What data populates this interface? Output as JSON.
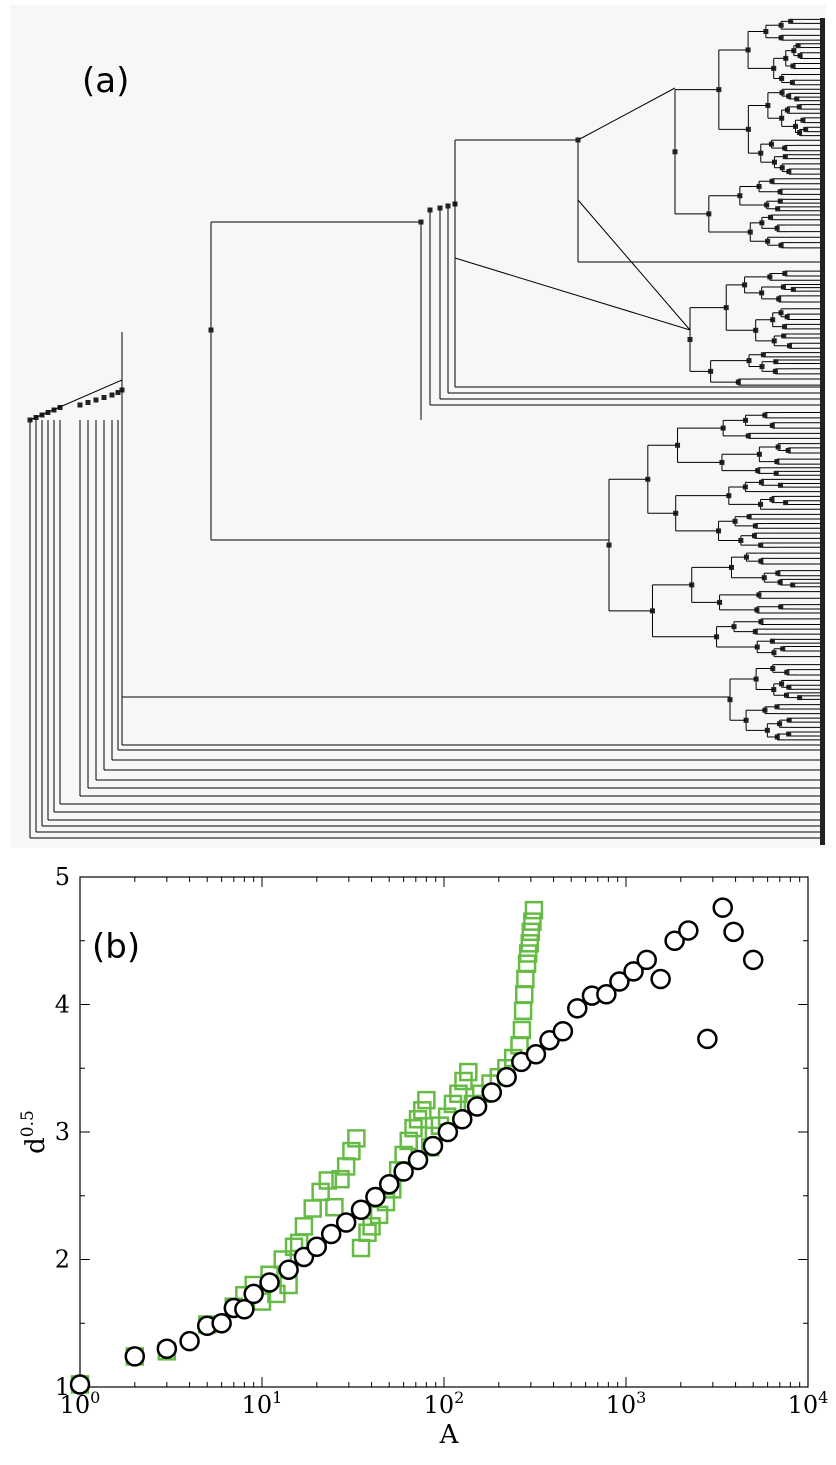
{
  "panel_a": {
    "label": "(a)",
    "background": "#f7f7f5",
    "line_color": "#000000",
    "node_color": "#222222"
  },
  "panel_b": {
    "label": "(b)"
  },
  "chart_data": [
    {
      "type": "tree",
      "panel": "(a)",
      "description_visible": "dendrogram",
      "title": "",
      "xlabel": "",
      "ylabel": ""
    },
    {
      "type": "scatter",
      "panel": "(b)",
      "title": "",
      "xlabel": "A",
      "ylabel": "d^0.5",
      "xscale": "log",
      "xlim": [
        1,
        10000
      ],
      "ylim": [
        1,
        5
      ],
      "x_ticks": [
        {
          "base": "10",
          "exp": "0"
        },
        {
          "base": "10",
          "exp": "1"
        },
        {
          "base": "10",
          "exp": "2"
        },
        {
          "base": "10",
          "exp": "3"
        },
        {
          "base": "10",
          "exp": "4"
        }
      ],
      "y_ticks": [
        "1",
        "2",
        "3",
        "4",
        "5"
      ],
      "series": [
        {
          "marker": "circle",
          "color": "#000000",
          "points": [
            [
              1,
              1.02
            ],
            [
              2,
              1.24
            ],
            [
              3,
              1.3
            ],
            [
              4,
              1.36
            ],
            [
              5,
              1.48
            ],
            [
              6,
              1.5
            ],
            [
              7,
              1.62
            ],
            [
              8,
              1.61
            ],
            [
              9,
              1.73
            ],
            [
              11,
              1.82
            ],
            [
              14,
              1.92
            ],
            [
              17,
              2.02
            ],
            [
              20,
              2.1
            ],
            [
              24,
              2.2
            ],
            [
              29,
              2.29
            ],
            [
              35,
              2.39
            ],
            [
              42,
              2.49
            ],
            [
              50,
              2.59
            ],
            [
              60,
              2.69
            ],
            [
              72,
              2.78
            ],
            [
              87,
              2.89
            ],
            [
              105,
              3.0
            ],
            [
              126,
              3.1
            ],
            [
              152,
              3.2
            ],
            [
              183,
              3.31
            ],
            [
              221,
              3.43
            ],
            [
              266,
              3.55
            ],
            [
              320,
              3.61
            ],
            [
              380,
              3.72
            ],
            [
              450,
              3.79
            ],
            [
              540,
              3.97
            ],
            [
              650,
              4.07
            ],
            [
              780,
              4.08
            ],
            [
              920,
              4.18
            ],
            [
              1100,
              4.26
            ],
            [
              1300,
              4.35
            ],
            [
              1550,
              4.2
            ],
            [
              1850,
              4.5
            ],
            [
              2200,
              4.58
            ],
            [
              2800,
              3.73
            ],
            [
              3400,
              4.76
            ],
            [
              3900,
              4.57
            ],
            [
              5000,
              4.35
            ]
          ]
        },
        {
          "marker": "square",
          "color": "#66bb44",
          "points": [
            [
              1,
              1.02
            ],
            [
              2,
              1.24
            ],
            [
              3,
              1.28
            ],
            [
              5,
              1.49
            ],
            [
              7,
              1.63
            ],
            [
              8,
              1.72
            ],
            [
              9,
              1.8
            ],
            [
              10,
              1.67
            ],
            [
              11,
              1.88
            ],
            [
              12,
              1.73
            ],
            [
              13,
              2.0
            ],
            [
              14,
              1.8
            ],
            [
              15,
              2.1
            ],
            [
              16,
              2.13
            ],
            [
              17,
              2.26
            ],
            [
              19,
              2.4
            ],
            [
              21,
              2.53
            ],
            [
              23,
              2.62
            ],
            [
              25,
              2.41
            ],
            [
              27,
              2.63
            ],
            [
              29,
              2.73
            ],
            [
              31,
              2.85
            ],
            [
              33,
              2.95
            ],
            [
              35,
              2.09
            ],
            [
              38,
              2.21
            ],
            [
              40,
              2.26
            ],
            [
              44,
              2.35
            ],
            [
              48,
              2.45
            ],
            [
              52,
              2.55
            ],
            [
              56,
              2.7
            ],
            [
              60,
              2.82
            ],
            [
              64,
              2.93
            ],
            [
              68,
              3.03
            ],
            [
              72,
              3.1
            ],
            [
              76,
              3.17
            ],
            [
              80,
              3.25
            ],
            [
              84,
              2.88
            ],
            [
              88,
              2.97
            ],
            [
              95,
              3.05
            ],
            [
              104,
              3.12
            ],
            [
              112,
              3.22
            ],
            [
              120,
              3.3
            ],
            [
              128,
              3.4
            ],
            [
              136,
              3.47
            ],
            [
              144,
              3.22
            ],
            [
              160,
              3.3
            ],
            [
              180,
              3.38
            ],
            [
              200,
              3.43
            ],
            [
              220,
              3.5
            ],
            [
              240,
              3.58
            ],
            [
              260,
              3.68
            ],
            [
              268,
              3.8
            ],
            [
              272,
              3.95
            ],
            [
              276,
              4.08
            ],
            [
              280,
              4.2
            ],
            [
              286,
              4.32
            ],
            [
              290,
              4.4
            ],
            [
              296,
              4.48
            ],
            [
              300,
              4.57
            ],
            [
              306,
              4.65
            ],
            [
              312,
              4.74
            ]
          ]
        }
      ]
    }
  ]
}
